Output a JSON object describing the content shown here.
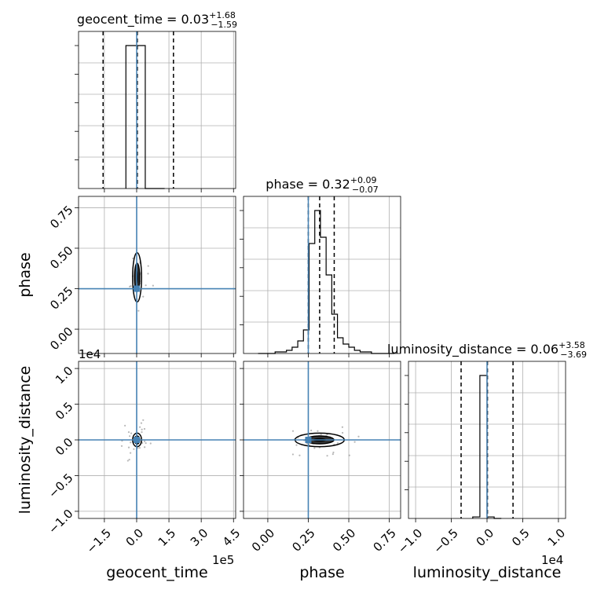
{
  "chart_data": {
    "type": "corner",
    "parameters": [
      "geocent_time",
      "phase",
      "luminosity_distance"
    ],
    "titles": [
      {
        "name": "geocent_time",
        "median": "0.03",
        "plus": "+1.68",
        "minus": "−1.59"
      },
      {
        "name": "phase",
        "median": "0.32",
        "plus": "+0.09",
        "minus": "−0.07"
      },
      {
        "name": "luminosity_distance",
        "median": "0.06",
        "plus": "+3.58",
        "minus": "−3.69"
      }
    ],
    "axis_labels": {
      "x": [
        "geocent_time",
        "phase",
        "luminosity_distance"
      ],
      "y": [
        "phase",
        "luminosity_distance"
      ]
    },
    "offset_texts": {
      "geocent_time": "1e5",
      "luminosity_distance": "1e4"
    },
    "ranges": {
      "geocent_time": [
        -2.7,
        4.6
      ],
      "phase": [
        -0.15,
        0.82
      ],
      "luminosity_distance": [
        -11000,
        11000
      ]
    },
    "ticks": {
      "geocent_time": {
        "values": [
          -1.5,
          0,
          1.5,
          3,
          4.5
        ],
        "labels": [
          "−1.5",
          "0.0",
          "1.5",
          "3.0",
          "4.5"
        ]
      },
      "phase": {
        "values": [
          0,
          0.25,
          0.5,
          0.75
        ],
        "labels": [
          "0.00",
          "0.25",
          "0.50",
          "0.75"
        ]
      },
      "luminosity_distance": {
        "values": [
          -10000,
          -5000,
          0,
          5000,
          10000
        ],
        "labels": [
          "−1.0",
          "−0.5",
          "0.0",
          "0.5",
          "1.0"
        ]
      }
    },
    "truths": {
      "geocent_time": 0.0,
      "phase": 0.25,
      "luminosity_distance": 0.0
    },
    "quantiles": {
      "geocent_time": [
        -1.56,
        0.03,
        1.71
      ],
      "phase": [
        0.25,
        0.32,
        0.41
      ],
      "luminosity_distance": [
        -3630,
        60,
        3640
      ]
    },
    "histograms": {
      "geocent_time": {
        "edges": [
          -0.5,
          0.4,
          1.3
        ],
        "counts": [
          1.0,
          0.0
        ]
      },
      "phase": {
        "edges": [
          -0.06,
          -0.025,
          0.01,
          0.045,
          0.08,
          0.115,
          0.15,
          0.185,
          0.22,
          0.255,
          0.29,
          0.325,
          0.36,
          0.395,
          0.43,
          0.465,
          0.5,
          0.535,
          0.57,
          0.605,
          0.64,
          0.675,
          0.71,
          0.745,
          0.78
        ],
        "counts": [
          0.0,
          0.0,
          0.0,
          0.01,
          0.01,
          0.02,
          0.04,
          0.08,
          0.15,
          0.7,
          0.91,
          0.74,
          0.5,
          0.25,
          0.1,
          0.06,
          0.04,
          0.02,
          0.01,
          0.01,
          0.0,
          0.0,
          0.0,
          0.0
        ]
      },
      "luminosity_distance": {
        "edges": [
          -2000,
          -1000,
          0,
          1000,
          2000
        ],
        "counts": [
          0.01,
          0.95,
          0.01,
          0.0
        ]
      }
    },
    "grid": true
  }
}
